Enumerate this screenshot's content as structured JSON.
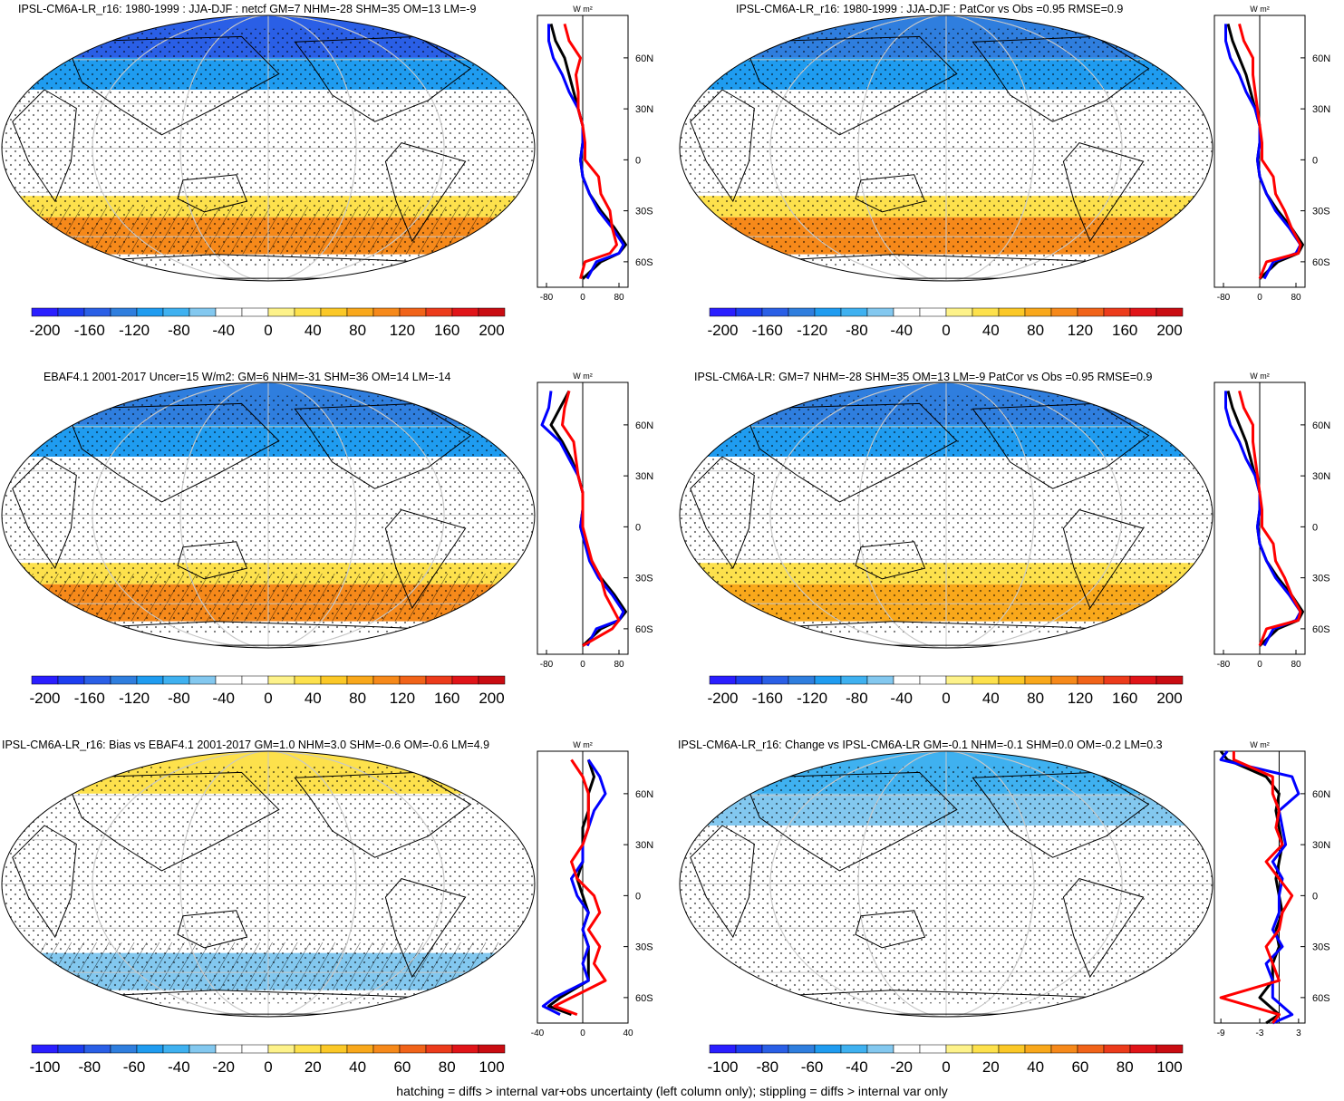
{
  "figure": {
    "footer": "hatching = diffs > internal var+obs uncertainty (left column only); stippling = diffs > internal var only",
    "zonal_unit": "W m²",
    "lat_ticks": [
      "60N",
      "30N",
      "0",
      "30S",
      "60S"
    ],
    "colors": {
      "line_model": "#000000",
      "line_obs": "#0000ff",
      "line_diff": "#ff0000"
    }
  },
  "panels": [
    {
      "id": "p1",
      "title": "IPSL-CM6A-LR_r16: 1980-1999 : JJA-DJF : netcf GM=7 NHM=-28 SHM=35 OM=13 LM=-9",
      "colorbar_labels": [
        "-200",
        "-160",
        "-120",
        "-80",
        "-40",
        "0",
        "40",
        "80",
        "120",
        "160",
        "200"
      ],
      "zonal_xticks": [
        "-80",
        "0",
        "80"
      ]
    },
    {
      "id": "p2",
      "title": "IPSL-CM6A-LR_r16: 1980-1999 : JJA-DJF : PatCor vs Obs =0.95 RMSE=0.9",
      "colorbar_labels": [
        "-200",
        "-160",
        "-120",
        "-80",
        "-40",
        "0",
        "40",
        "80",
        "120",
        "160",
        "200"
      ],
      "zonal_xticks": [
        "-80",
        "0",
        "80"
      ]
    },
    {
      "id": "p3",
      "title": "EBAF4.1 2001-2017 Uncer=15 W/m2: GM=6 NHM=-31 SHM=36 OM=14 LM=-14",
      "colorbar_labels": [
        "-200",
        "-160",
        "-120",
        "-80",
        "-40",
        "0",
        "40",
        "80",
        "120",
        "160",
        "200"
      ],
      "zonal_xticks": [
        "-80",
        "0",
        "80"
      ]
    },
    {
      "id": "p4",
      "title": "IPSL-CM6A-LR: GM=7 NHM=-28 SHM=35 OM=13 LM=-9 PatCor vs Obs =0.95 RMSE=0.9",
      "colorbar_labels": [
        "-200",
        "-160",
        "-120",
        "-80",
        "-40",
        "0",
        "40",
        "80",
        "120",
        "160",
        "200"
      ],
      "zonal_xticks": [
        "-80",
        "0",
        "80"
      ]
    },
    {
      "id": "p5",
      "title": "IPSL-CM6A-LR_r16: Bias vs EBAF4.1 2001-2017 GM=1.0 NHM=3.0 SHM=-0.6 OM=-0.6 LM=4.9",
      "colorbar_labels": [
        "-100",
        "-80",
        "-60",
        "-40",
        "-20",
        "0",
        "20",
        "40",
        "60",
        "80",
        "100"
      ],
      "zonal_xticks": [
        "-40",
        "0",
        "40"
      ]
    },
    {
      "id": "p6",
      "title": "IPSL-CM6A-LR_r16: Change vs IPSL-CM6A-LR GM=-0.1 NHM=-0.1 SHM=0.0 OM=-0.2 LM=0.3",
      "colorbar_labels": [
        "-100",
        "-80",
        "-60",
        "-40",
        "-20",
        "0",
        "20",
        "40",
        "60",
        "80",
        "100"
      ],
      "zonal_xticks": [
        "-9",
        "-3",
        "3"
      ]
    }
  ],
  "chart_data": [
    {
      "type": "heatmap",
      "title": "IPSL-CM6A-LR_r16: 1980-1999 : JJA-DJF : netcf GM=7 NHM=-28 SHM=35 OM=13 LM=-9",
      "colorbar": {
        "min": -200,
        "max": 200,
        "ticks": [
          -200,
          -160,
          -120,
          -80,
          -40,
          0,
          40,
          80,
          120,
          160,
          200
        ]
      },
      "pattern": {
        "nh_extratropics": -120,
        "sh_extratropics": 90,
        "tropics": 0
      },
      "zonal_mean": {
        "xlabel": "W m²",
        "xlim": [
          -100,
          100
        ],
        "lat": [
          80,
          70,
          60,
          50,
          40,
          30,
          20,
          10,
          0,
          -10,
          -20,
          -30,
          -40,
          -50,
          -55,
          -60,
          -70
        ],
        "series": [
          {
            "name": "model",
            "color": "#000000",
            "values": [
              -70,
              -60,
              -40,
              -30,
              -20,
              -10,
              0,
              0,
              -5,
              0,
              15,
              40,
              70,
              95,
              80,
              40,
              0
            ]
          },
          {
            "name": "obs",
            "color": "#0000ff",
            "values": [
              -75,
              -75,
              -65,
              -45,
              -30,
              -10,
              0,
              0,
              -5,
              0,
              15,
              35,
              65,
              90,
              80,
              30,
              10
            ]
          },
          {
            "name": "diff",
            "color": "#ff0000",
            "values": [
              -40,
              -30,
              -5,
              -15,
              -10,
              -10,
              0,
              5,
              5,
              35,
              40,
              60,
              65,
              75,
              60,
              5,
              -5
            ]
          }
        ]
      }
    },
    {
      "type": "heatmap",
      "title": "IPSL-CM6A-LR_r16: 1980-1999 : JJA-DJF : PatCor vs Obs =0.95 RMSE=0.9",
      "colorbar": {
        "min": -200,
        "max": 200,
        "ticks": [
          -200,
          -160,
          -120,
          -80,
          -40,
          0,
          40,
          80,
          120,
          160,
          200
        ]
      },
      "pattern": {
        "nh_extratropics": -100,
        "sh_extratropics": 90,
        "tropics": 0
      },
      "zonal_mean": {
        "xlabel": "W m²",
        "xlim": [
          -100,
          100
        ],
        "lat": [
          80,
          70,
          60,
          50,
          40,
          30,
          20,
          10,
          0,
          -10,
          -20,
          -30,
          -40,
          -50,
          -55,
          -60,
          -70
        ],
        "series": [
          {
            "name": "model",
            "color": "#000000",
            "values": [
              -70,
              -60,
              -45,
              -30,
              -20,
              -10,
              0,
              0,
              -5,
              0,
              15,
              40,
              70,
              95,
              85,
              40,
              0
            ]
          },
          {
            "name": "obs",
            "color": "#0000ff",
            "values": [
              -75,
              -75,
              -65,
              -45,
              -30,
              -10,
              0,
              0,
              -5,
              0,
              15,
              35,
              65,
              90,
              80,
              30,
              10
            ]
          },
          {
            "name": "diff",
            "color": "#ff0000",
            "values": [
              -45,
              -35,
              -15,
              -15,
              -10,
              -5,
              0,
              5,
              5,
              30,
              35,
              55,
              70,
              90,
              85,
              15,
              0
            ]
          }
        ]
      }
    },
    {
      "type": "heatmap",
      "title": "EBAF4.1 2001-2017 Uncer=15 W/m2: GM=6 NHM=-31 SHM=36 OM=14 LM=-14",
      "colorbar": {
        "min": -200,
        "max": 200,
        "ticks": [
          -200,
          -160,
          -120,
          -80,
          -40,
          0,
          40,
          80,
          120,
          160,
          200
        ]
      },
      "pattern": {
        "nh_extratropics": -110,
        "sh_extratropics": 110,
        "tropics": 0
      },
      "zonal_mean": {
        "xlabel": "W m²",
        "xlim": [
          -100,
          100
        ],
        "lat": [
          80,
          70,
          60,
          50,
          40,
          30,
          20,
          10,
          0,
          -10,
          -20,
          -30,
          -40,
          -50,
          -55,
          -60,
          -70
        ],
        "series": [
          {
            "name": "model",
            "color": "#000000",
            "values": [
              -30,
              -50,
              -70,
              -45,
              -25,
              -10,
              0,
              0,
              -5,
              5,
              20,
              40,
              70,
              95,
              80,
              40,
              0
            ]
          },
          {
            "name": "obs",
            "color": "#0000ff",
            "values": [
              -70,
              -75,
              -90,
              -50,
              -30,
              -10,
              0,
              0,
              -5,
              5,
              15,
              35,
              65,
              90,
              80,
              30,
              10
            ]
          },
          {
            "name": "diff",
            "color": "#ff0000",
            "values": [
              -30,
              -40,
              -45,
              -20,
              -15,
              -10,
              0,
              0,
              0,
              10,
              20,
              40,
              50,
              70,
              80,
              65,
              0
            ]
          }
        ]
      }
    },
    {
      "type": "heatmap",
      "title": "IPSL-CM6A-LR: GM=7 NHM=-28 SHM=35 OM=13 LM=-9 PatCor vs Obs =0.95 RMSE=0.9",
      "colorbar": {
        "min": -200,
        "max": 200,
        "ticks": [
          -200,
          -160,
          -120,
          -80,
          -40,
          0,
          40,
          80,
          120,
          160,
          200
        ]
      },
      "pattern": {
        "nh_extratropics": -110,
        "sh_extratropics": 85,
        "tropics": 0
      },
      "zonal_mean": {
        "xlabel": "W m²",
        "xlim": [
          -100,
          100
        ],
        "lat": [
          80,
          70,
          60,
          50,
          40,
          30,
          20,
          10,
          0,
          -10,
          -20,
          -30,
          -40,
          -50,
          -55,
          -60,
          -70
        ],
        "series": [
          {
            "name": "model",
            "color": "#000000",
            "values": [
              -70,
              -60,
              -45,
              -30,
              -20,
              -10,
              0,
              0,
              -5,
              0,
              15,
              40,
              70,
              95,
              85,
              40,
              0
            ]
          },
          {
            "name": "obs",
            "color": "#0000ff",
            "values": [
              -75,
              -75,
              -65,
              -45,
              -30,
              -10,
              0,
              0,
              -5,
              0,
              15,
              35,
              65,
              90,
              80,
              30,
              10
            ]
          },
          {
            "name": "diff",
            "color": "#ff0000",
            "values": [
              -45,
              -35,
              -15,
              -15,
              -10,
              -5,
              0,
              5,
              5,
              30,
              35,
              55,
              70,
              90,
              85,
              15,
              0
            ]
          }
        ]
      }
    },
    {
      "type": "heatmap",
      "title": "IPSL-CM6A-LR_r16: Bias vs EBAF4.1 2001-2017 GM=1.0 NHM=3.0 SHM=-0.6 OM=-0.6 LM=4.9",
      "colorbar": {
        "min": -100,
        "max": 100,
        "ticks": [
          -100,
          -80,
          -60,
          -40,
          -20,
          0,
          20,
          40,
          60,
          80,
          100
        ]
      },
      "pattern": {
        "nh_extratropics": 15,
        "sh_extratropics": -10,
        "tropics": 5
      },
      "zonal_mean": {
        "xlabel": "W m²",
        "xlim": [
          -40,
          40
        ],
        "lat": [
          80,
          70,
          60,
          50,
          40,
          30,
          20,
          10,
          0,
          -10,
          -20,
          -30,
          -40,
          -50,
          -60,
          -65,
          -70
        ],
        "series": [
          {
            "name": "model",
            "color": "#000000",
            "values": [
              5,
              10,
              5,
              5,
              0,
              0,
              0,
              -5,
              0,
              5,
              0,
              5,
              5,
              5,
              -20,
              -30,
              -10
            ]
          },
          {
            "name": "obs",
            "color": "#0000ff",
            "values": [
              5,
              15,
              20,
              10,
              5,
              0,
              0,
              -10,
              -5,
              5,
              0,
              5,
              0,
              5,
              -25,
              -35,
              -20
            ]
          },
          {
            "name": "diff",
            "color": "#ff0000",
            "values": [
              -10,
              0,
              5,
              5,
              5,
              0,
              -10,
              -5,
              10,
              15,
              5,
              15,
              10,
              20,
              -10,
              -25,
              -5
            ]
          }
        ]
      }
    },
    {
      "type": "heatmap",
      "title": "IPSL-CM6A-LR_r16: Change vs IPSL-CM6A-LR GM=-0.1 NHM=-0.1 SHM=0.0 OM=-0.2 LM=0.3",
      "colorbar": {
        "min": -100,
        "max": 100,
        "ticks": [
          -100,
          -80,
          -60,
          -40,
          -20,
          0,
          20,
          40,
          60,
          80,
          100
        ]
      },
      "pattern": {
        "nh_extratropics": -20,
        "sh_extratropics": 0,
        "tropics": 0
      },
      "zonal_mean": {
        "xlabel": "W m²",
        "xlim": [
          -10,
          4
        ],
        "lat": [
          85,
          80,
          70,
          60,
          50,
          40,
          30,
          20,
          10,
          0,
          -10,
          -20,
          -30,
          -40,
          -50,
          -60,
          -70,
          -75
        ],
        "series": [
          {
            "name": "model",
            "color": "#000000",
            "values": [
              -9,
              -8,
              -2,
              0,
              -0.5,
              0,
              0.5,
              0,
              -0.5,
              0,
              0.5,
              -0.5,
              0,
              -1,
              -1,
              -3,
              0,
              -2
            ]
          },
          {
            "name": "obs",
            "color": "#0000ff",
            "values": [
              -8,
              -9,
              2,
              3,
              0,
              0.5,
              1,
              -1,
              0.5,
              0,
              0,
              -1,
              0.5,
              -2,
              -1,
              -1,
              2,
              -1
            ]
          },
          {
            "name": "diff",
            "color": "#ff0000",
            "values": [
              -7,
              -7,
              -1,
              -1,
              0,
              -0.5,
              0.5,
              -2,
              0,
              2,
              0.5,
              0,
              -2,
              -1,
              0,
              -9,
              0,
              -1
            ]
          }
        ]
      }
    }
  ]
}
